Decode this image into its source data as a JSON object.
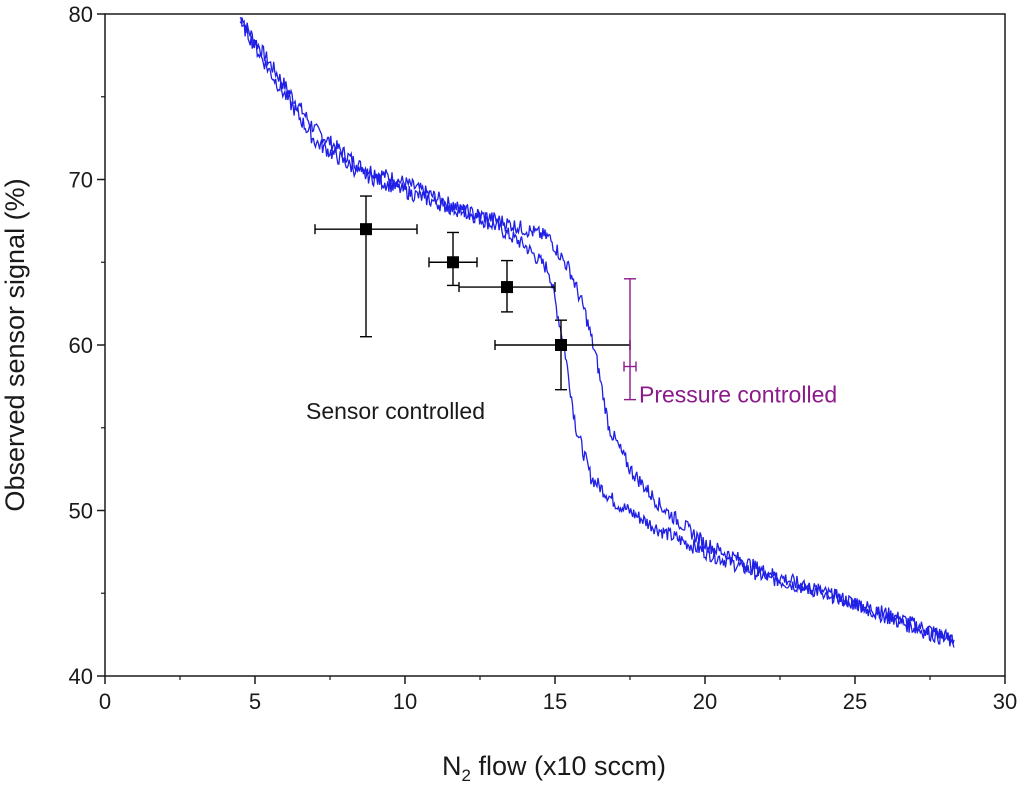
{
  "chart_data": {
    "type": "scatter",
    "xlabel_main": "N",
    "xlabel_sub": "2",
    "xlabel_rest": " flow (x10 sccm)",
    "ylabel": "Observed sensor signal (%)",
    "xlim": [
      0,
      30
    ],
    "ylim": [
      40,
      80
    ],
    "x_ticks": [
      "0",
      "5",
      "10",
      "15",
      "20",
      "25",
      "30"
    ],
    "y_ticks": [
      "40",
      "50",
      "60",
      "70",
      "80"
    ],
    "grid": false,
    "colors": {
      "hysteresis": "#1f1fe6",
      "sensor": "#000000",
      "pressure": "#8b1a8b",
      "axis": "#1a1a1a"
    },
    "series": [
      {
        "style": "line",
        "color": "#1f1fe6",
        "x": [
          4.5,
          5.5,
          7.0,
          8.5,
          10.0,
          11.5,
          13.0,
          14.0,
          14.8,
          15.3,
          15.7,
          16.2,
          17.0,
          18.5,
          20.0,
          22.0,
          24.0,
          26.0,
          28.3
        ],
        "y": [
          79.8,
          77.0,
          73.0,
          70.8,
          69.8,
          68.5,
          67.2,
          66.0,
          64.5,
          60.0,
          55.0,
          52.0,
          50.5,
          48.8,
          47.5,
          46.0,
          45.0,
          43.8,
          42.2
        ]
      },
      {
        "style": "line",
        "color": "#1f1fe6",
        "x": [
          4.5,
          5.5,
          7.0,
          8.5,
          10.0,
          11.5,
          13.0,
          14.0,
          14.8,
          15.5,
          16.0,
          16.4,
          16.8,
          17.5,
          18.5,
          20.0,
          22.0,
          24.0,
          26.0,
          28.3
        ],
        "y": [
          79.6,
          76.5,
          72.3,
          70.4,
          69.3,
          68.3,
          67.6,
          67.0,
          66.5,
          64.5,
          62.0,
          59.0,
          55.0,
          52.5,
          50.3,
          48.0,
          46.3,
          45.0,
          43.6,
          42.0
        ]
      },
      {
        "style": "markers",
        "color": "#000000",
        "points": [
          {
            "x": 8.7,
            "y": 67.0,
            "xerr": [
              7.0,
              10.4
            ],
            "yerr": [
              60.5,
              69.0
            ]
          },
          {
            "x": 11.6,
            "y": 65.0,
            "xerr": [
              10.8,
              12.4
            ],
            "yerr": [
              63.6,
              66.8
            ]
          },
          {
            "x": 13.4,
            "y": 63.5,
            "xerr": [
              11.8,
              15.0
            ],
            "yerr": [
              62.0,
              65.1
            ]
          },
          {
            "x": 15.2,
            "y": 60.0,
            "xerr": [
              13.0,
              17.5
            ],
            "yerr": [
              57.3,
              61.5
            ]
          }
        ]
      },
      {
        "style": "errorbar",
        "color": "#8b1a8b",
        "points": [
          {
            "x": 17.5,
            "y": 58.7,
            "xerr": [
              17.3,
              17.7
            ],
            "yerr": [
              56.7,
              64.0
            ]
          }
        ]
      }
    ],
    "annotations": [
      {
        "text": "Sensor controlled",
        "x": 6.7,
        "y": 56.0,
        "color": "#1a1a1a"
      },
      {
        "text": "Pressure controlled",
        "x": 17.8,
        "y": 57.0,
        "color": "#8b1a8b"
      }
    ]
  }
}
